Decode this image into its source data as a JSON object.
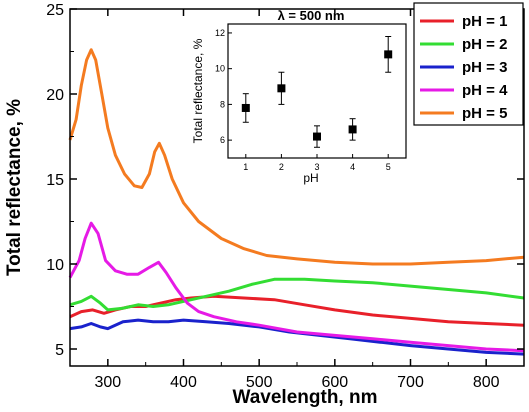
{
  "chart_data": [
    {
      "type": "line",
      "xlabel": "Wavelength, nm",
      "ylabel": "Total reflectance, %",
      "xlim": [
        250,
        850
      ],
      "ylim": [
        4,
        25
      ],
      "xticks": [
        300,
        400,
        500,
        600,
        700,
        800
      ],
      "yticks": [
        5,
        10,
        15,
        20,
        25
      ],
      "legend_position": "top-right",
      "series": [
        {
          "name": "pH = 1",
          "color": "#e8202a",
          "points": [
            [
              250,
              6.9
            ],
            [
              265,
              7.2
            ],
            [
              280,
              7.3
            ],
            [
              295,
              7.1
            ],
            [
              310,
              7.3
            ],
            [
              330,
              7.5
            ],
            [
              350,
              7.5
            ],
            [
              370,
              7.7
            ],
            [
              390,
              7.9
            ],
            [
              410,
              8.0
            ],
            [
              440,
              8.1
            ],
            [
              480,
              8.0
            ],
            [
              520,
              7.9
            ],
            [
              560,
              7.6
            ],
            [
              600,
              7.3
            ],
            [
              650,
              7.0
            ],
            [
              700,
              6.8
            ],
            [
              750,
              6.6
            ],
            [
              800,
              6.5
            ],
            [
              850,
              6.4
            ]
          ]
        },
        {
          "name": "pH = 2",
          "color": "#33dd33",
          "points": [
            [
              250,
              7.6
            ],
            [
              265,
              7.8
            ],
            [
              278,
              8.1
            ],
            [
              290,
              7.7
            ],
            [
              300,
              7.3
            ],
            [
              320,
              7.4
            ],
            [
              340,
              7.6
            ],
            [
              360,
              7.5
            ],
            [
              380,
              7.6
            ],
            [
              400,
              7.8
            ],
            [
              430,
              8.1
            ],
            [
              460,
              8.4
            ],
            [
              490,
              8.8
            ],
            [
              520,
              9.1
            ],
            [
              560,
              9.1
            ],
            [
              600,
              9.0
            ],
            [
              650,
              8.9
            ],
            [
              700,
              8.7
            ],
            [
              750,
              8.5
            ],
            [
              800,
              8.3
            ],
            [
              850,
              8.0
            ]
          ]
        },
        {
          "name": "pH = 3",
          "color": "#1a22cc",
          "points": [
            [
              250,
              6.2
            ],
            [
              265,
              6.3
            ],
            [
              278,
              6.5
            ],
            [
              290,
              6.3
            ],
            [
              300,
              6.2
            ],
            [
              320,
              6.6
            ],
            [
              340,
              6.7
            ],
            [
              360,
              6.6
            ],
            [
              380,
              6.6
            ],
            [
              400,
              6.7
            ],
            [
              430,
              6.6
            ],
            [
              460,
              6.5
            ],
            [
              500,
              6.3
            ],
            [
              540,
              6.0
            ],
            [
              580,
              5.8
            ],
            [
              620,
              5.6
            ],
            [
              660,
              5.4
            ],
            [
              700,
              5.2
            ],
            [
              750,
              5.0
            ],
            [
              800,
              4.8
            ],
            [
              850,
              4.7
            ]
          ]
        },
        {
          "name": "pH = 4",
          "color": "#e61ae6",
          "points": [
            [
              250,
              9.2
            ],
            [
              262,
              10.2
            ],
            [
              270,
              11.5
            ],
            [
              278,
              12.4
            ],
            [
              287,
              11.8
            ],
            [
              297,
              10.2
            ],
            [
              310,
              9.6
            ],
            [
              325,
              9.4
            ],
            [
              340,
              9.4
            ],
            [
              355,
              9.8
            ],
            [
              367,
              10.1
            ],
            [
              377,
              9.5
            ],
            [
              390,
              8.6
            ],
            [
              405,
              7.7
            ],
            [
              420,
              7.2
            ],
            [
              440,
              6.9
            ],
            [
              470,
              6.6
            ],
            [
              500,
              6.4
            ],
            [
              550,
              6.0
            ],
            [
              600,
              5.8
            ],
            [
              650,
              5.6
            ],
            [
              700,
              5.4
            ],
            [
              750,
              5.2
            ],
            [
              800,
              5.0
            ],
            [
              850,
              4.9
            ]
          ]
        },
        {
          "name": "pH = 5",
          "color": "#f47b20",
          "points": [
            [
              250,
              17.3
            ],
            [
              258,
              18.5
            ],
            [
              265,
              20.5
            ],
            [
              272,
              22.0
            ],
            [
              278,
              22.6
            ],
            [
              284,
              22.0
            ],
            [
              292,
              20.0
            ],
            [
              300,
              18.0
            ],
            [
              310,
              16.4
            ],
            [
              322,
              15.3
            ],
            [
              335,
              14.6
            ],
            [
              345,
              14.5
            ],
            [
              355,
              15.3
            ],
            [
              362,
              16.6
            ],
            [
              368,
              17.1
            ],
            [
              375,
              16.4
            ],
            [
              385,
              15.0
            ],
            [
              400,
              13.6
            ],
            [
              420,
              12.5
            ],
            [
              450,
              11.5
            ],
            [
              480,
              10.9
            ],
            [
              510,
              10.5
            ],
            [
              550,
              10.3
            ],
            [
              600,
              10.1
            ],
            [
              650,
              10.0
            ],
            [
              700,
              10.0
            ],
            [
              750,
              10.1
            ],
            [
              800,
              10.2
            ],
            [
              850,
              10.4
            ]
          ]
        }
      ]
    },
    {
      "type": "scatter",
      "title": "λ = 500 nm",
      "xlabel": "pH",
      "ylabel": "Total reflectance, %",
      "xlim": [
        0.5,
        5.5
      ],
      "ylim": [
        5,
        12.5
      ],
      "xticks": [
        1,
        2,
        3,
        4,
        5
      ],
      "yticks": [
        6,
        8,
        10,
        12
      ],
      "x": [
        1,
        2,
        3,
        4,
        5
      ],
      "y": [
        7.8,
        8.9,
        6.2,
        6.6,
        10.8
      ],
      "error": [
        0.8,
        0.9,
        0.6,
        0.6,
        1.0
      ]
    }
  ]
}
